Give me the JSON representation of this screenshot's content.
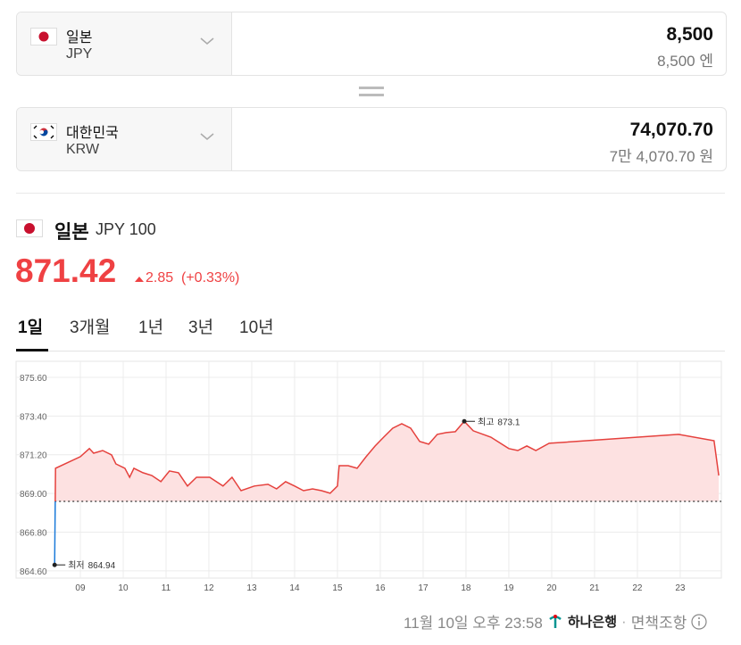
{
  "converter": {
    "from": {
      "name": "일본",
      "code": "JPY",
      "amount": "8,500",
      "amount_words": "8,500 엔"
    },
    "to": {
      "name": "대한민국",
      "code": "KRW",
      "amount": "74,070.70",
      "amount_words": "7만 4,070.70 원"
    }
  },
  "quote": {
    "name": "일본",
    "unit": "JPY 100",
    "price": "871.42",
    "change": "2.85",
    "change_pct": "(+0.33%)"
  },
  "tabs": [
    "1일",
    "3개월",
    "1년",
    "3년",
    "10년"
  ],
  "chart_data": {
    "type": "line",
    "color": "#e5413d",
    "below_color": "#1a7ad9",
    "fill": "#fde1e1",
    "x": [
      8.4,
      8.42,
      9.0,
      9.21,
      9.31,
      9.52,
      9.73,
      9.83,
      10.04,
      10.15,
      10.25,
      10.46,
      10.67,
      10.88,
      11.08,
      11.29,
      11.5,
      11.71,
      12.02,
      12.33,
      12.54,
      12.75,
      13.06,
      13.38,
      13.58,
      13.79,
      14.0,
      14.21,
      14.42,
      14.63,
      14.83,
      15.0,
      15.04,
      15.25,
      15.46,
      15.67,
      15.88,
      16.08,
      16.29,
      16.5,
      16.71,
      16.92,
      17.13,
      17.33,
      17.54,
      17.75,
      17.96,
      18.17,
      18.58,
      19.0,
      19.21,
      19.42,
      19.63,
      19.94,
      22.96,
      23.79,
      23.9
    ],
    "values": [
      864.94,
      870.43,
      871.09,
      871.55,
      871.29,
      871.44,
      871.19,
      870.68,
      870.43,
      869.92,
      870.43,
      870.18,
      870.02,
      869.67,
      870.28,
      870.18,
      869.42,
      869.92,
      869.92,
      869.42,
      869.92,
      869.16,
      869.42,
      869.52,
      869.26,
      869.67,
      869.42,
      869.16,
      869.26,
      869.16,
      869.01,
      869.42,
      870.58,
      870.58,
      870.43,
      871.09,
      871.7,
      872.2,
      872.71,
      872.96,
      872.71,
      871.95,
      871.8,
      872.36,
      872.46,
      872.51,
      873.1,
      872.56,
      872.2,
      871.55,
      871.44,
      871.7,
      871.44,
      871.85,
      872.36,
      872.0,
      870.02
    ],
    "baseline": 868.55,
    "high_label": "최고",
    "low_label": "최저",
    "xlim": [
      7.5,
      23.96
    ],
    "ylim": [
      864.19,
      876.51
    ],
    "xticks": [
      {
        "value": 9,
        "label": "09"
      },
      10,
      11,
      12,
      13,
      14,
      15,
      16,
      17,
      18,
      19,
      20,
      21,
      22,
      23
    ],
    "yticks": [
      {
        "value": 864.6,
        "label": "864.60"
      },
      {
        "value": 866.8,
        "label": "866.80"
      },
      {
        "value": 869.0,
        "label": "869.00"
      },
      {
        "value": 871.2,
        "label": "871.20"
      },
      {
        "value": 873.4,
        "label": "873.40"
      },
      {
        "value": 875.6,
        "label": "875.60"
      }
    ],
    "grid": true
  },
  "footer": {
    "timestamp": "11월 10일 오후 23:58",
    "bank": "하나은행",
    "disclaimer": "면책조항"
  }
}
